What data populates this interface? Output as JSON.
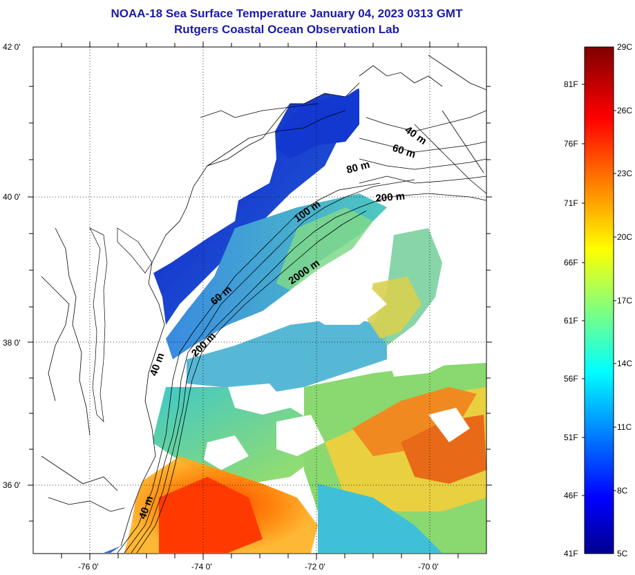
{
  "title_line1": "NOAA-18 Sea Surface Temperature January 04, 2023 0313 GMT",
  "title_line2": "Rutgers Coastal Ocean Observation Lab",
  "lat_ticks": [
    "42 0'",
    "40 0'",
    "38 0'",
    "36 0'"
  ],
  "lon_ticks": [
    "-76 0'",
    "-74 0'",
    "-72 0'",
    "-70 0'"
  ],
  "isobath_labels": [
    "40 m",
    "60 m",
    "80 m",
    "200 m",
    "100 m",
    "2000 m",
    "60 m",
    "200 m",
    "40 m",
    "40 m"
  ],
  "colorbar": {
    "fahrenheit": [
      "81F",
      "76F",
      "71F",
      "66F",
      "61F",
      "56F",
      "51F",
      "46F",
      "41F"
    ],
    "celsius": [
      "29C",
      "26C",
      "23C",
      "20C",
      "17C",
      "14C",
      "11C",
      "8C",
      "5C"
    ]
  },
  "colors": {
    "title": "#1a1aa8",
    "cold": "#1414c8",
    "warm": "#ff3a00"
  }
}
